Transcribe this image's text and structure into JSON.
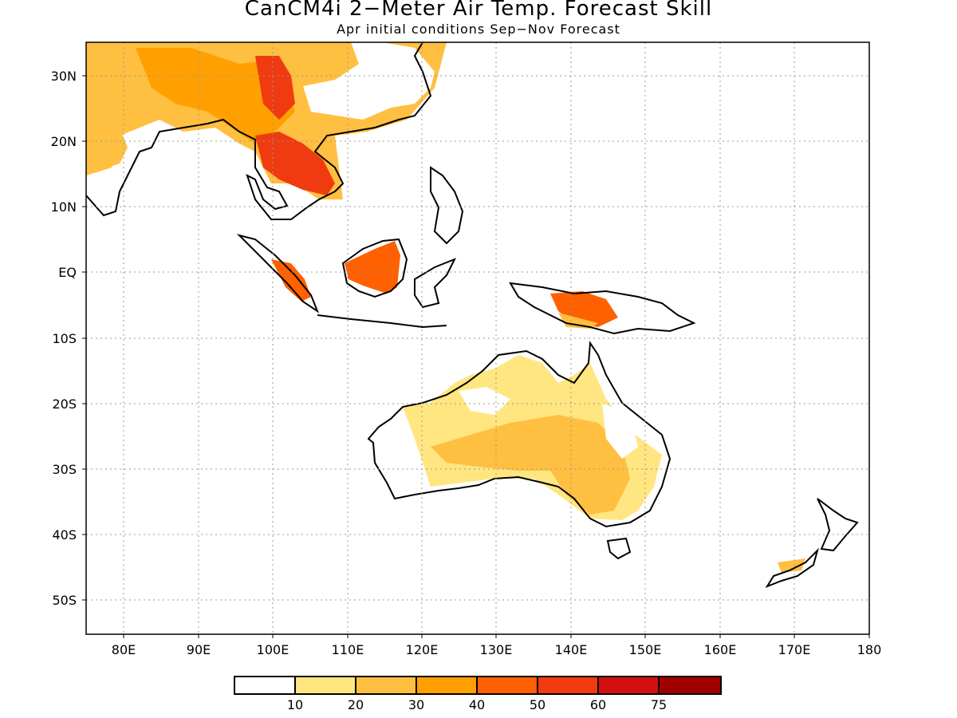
{
  "title": "CanCM4i 2−Meter Air Temp. Forecast Skill",
  "subtitle": "Apr initial conditions  Sep−Nov Forecast",
  "map": {
    "lon_range": [
      75,
      180
    ],
    "lat_range": [
      -55,
      35
    ],
    "grid": true,
    "x_ticks": [
      "80E",
      "90E",
      "100E",
      "110E",
      "120E",
      "130E",
      "140E",
      "150E",
      "160E",
      "170E",
      "180"
    ],
    "y_ticks": [
      "30N",
      "20N",
      "10N",
      "EQ",
      "10S",
      "20S",
      "30S",
      "40S",
      "50S"
    ]
  },
  "colorbar": {
    "colors": [
      "#ffffff",
      "#ffe680",
      "#ffbf40",
      "#ffa000",
      "#ff6000",
      "#f03a10",
      "#d21010",
      "#a00000"
    ],
    "labels": [
      "10",
      "20",
      "30",
      "40",
      "50",
      "60",
      "75"
    ]
  }
}
